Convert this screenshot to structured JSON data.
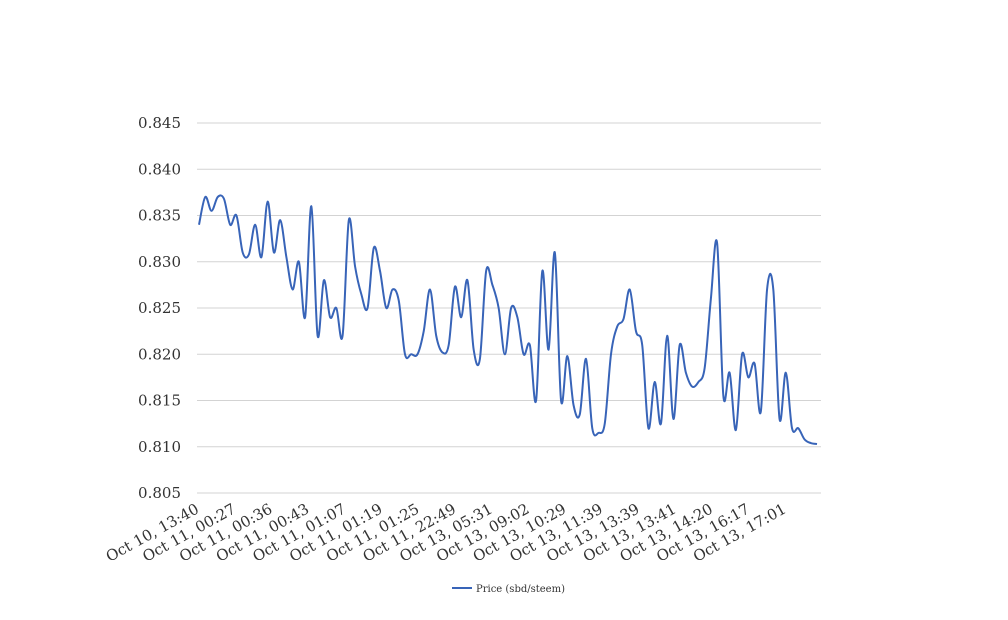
{
  "chart_data": {
    "type": "line",
    "title": "",
    "xlabel": "",
    "ylabel": "",
    "ylim": [
      0.805,
      0.845
    ],
    "yticks": [
      "0.845",
      "0.840",
      "0.835",
      "0.830",
      "0.825",
      "0.820",
      "0.815",
      "0.810",
      "0.805"
    ],
    "grid": true,
    "legend_position": "bottom-center",
    "x_tick_labels": [
      "Oct 10, 13:40",
      "Oct 11, 00:27",
      "Oct 11, 00:36",
      "Oct 11, 00:43",
      "Oct 11, 01:07",
      "Oct 11, 01:19",
      "Oct 11, 01:25",
      "Oct 11, 22:49",
      "Oct 13, 05:31",
      "Oct 13, 09:02",
      "Oct 13, 10:29",
      "Oct 13, 11:39",
      "Oct 13, 13:39",
      "Oct 13, 13:41",
      "Oct 13, 14:20",
      "Oct 13, 16:17",
      "Oct 13, 17:01"
    ],
    "series": [
      {
        "name": "Price (sbd/steem)",
        "color": "#3864b8",
        "values": [
          0.834,
          0.837,
          0.8355,
          0.837,
          0.8368,
          0.834,
          0.835,
          0.831,
          0.8308,
          0.834,
          0.8305,
          0.8365,
          0.831,
          0.8345,
          0.8305,
          0.827,
          0.83,
          0.824,
          0.836,
          0.822,
          0.828,
          0.824,
          0.825,
          0.822,
          0.8345,
          0.8295,
          0.8265,
          0.825,
          0.8315,
          0.829,
          0.825,
          0.827,
          0.8258,
          0.82,
          0.82,
          0.82,
          0.8225,
          0.827,
          0.822,
          0.8202,
          0.821,
          0.8273,
          0.824,
          0.828,
          0.8205,
          0.8195,
          0.829,
          0.8275,
          0.825,
          0.82,
          0.825,
          0.824,
          0.82,
          0.821,
          0.815,
          0.829,
          0.8205,
          0.831,
          0.815,
          0.8198,
          0.8145,
          0.8135,
          0.8195,
          0.812,
          0.8115,
          0.8125,
          0.82,
          0.823,
          0.8238,
          0.827,
          0.8225,
          0.821,
          0.812,
          0.817,
          0.8125,
          0.822,
          0.813,
          0.821,
          0.818,
          0.8165,
          0.817,
          0.8185,
          0.826,
          0.832,
          0.8155,
          0.818,
          0.8118,
          0.82,
          0.8175,
          0.819,
          0.8138,
          0.827,
          0.827,
          0.813,
          0.818,
          0.812,
          0.812,
          0.8108,
          0.8104,
          0.8103
        ]
      }
    ]
  }
}
